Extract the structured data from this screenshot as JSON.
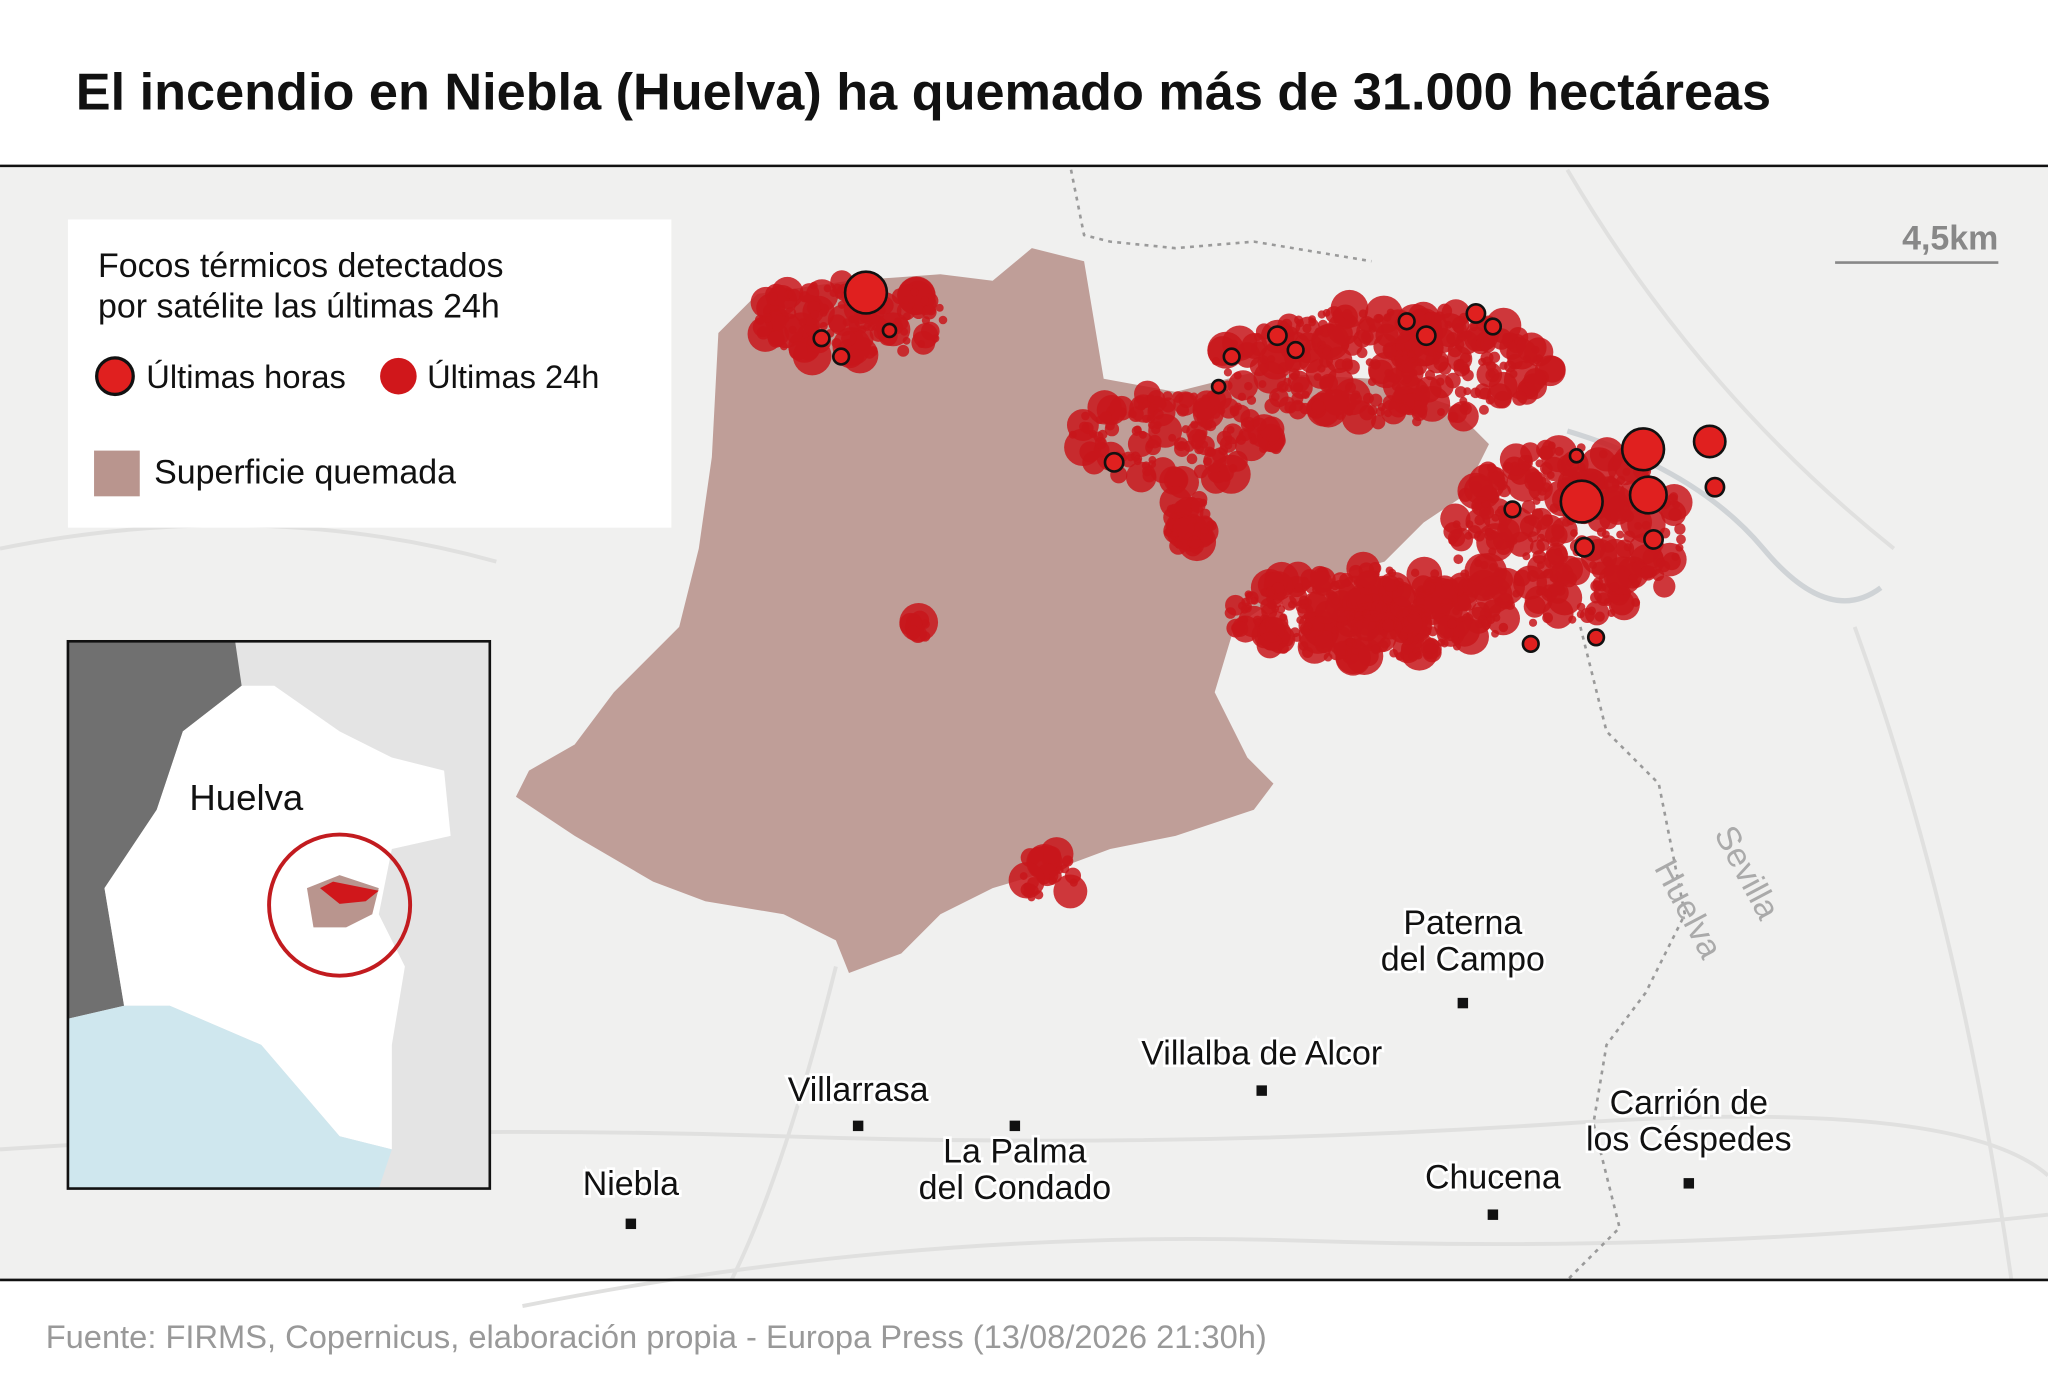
{
  "title": "El incendio en Niebla (Huelva) ha quemado más de 31.000 hectáreas",
  "legend": {
    "title_lines": [
      "Focos térmicos detectados",
      "por satélite las últimas 24h"
    ],
    "recent": "Últimas horas",
    "day": "Últimas 24h",
    "burned": "Superficie quemada"
  },
  "scale": "4,5km",
  "places": [
    {
      "lines": [
        "Paterna",
        "del Campo"
      ]
    },
    {
      "lines": [
        "Villalba de Alcor"
      ]
    },
    {
      "lines": [
        "Villarrasa"
      ]
    },
    {
      "lines": [
        "La Palma",
        "del Condado"
      ]
    },
    {
      "lines": [
        "Niebla"
      ]
    },
    {
      "lines": [
        "Chucena"
      ]
    },
    {
      "lines": [
        "Carrión de",
        "los Céspedes"
      ]
    }
  ],
  "roads": [
    "Sevilla",
    "Huelva"
  ],
  "inset": {
    "label": "Huelva"
  },
  "source": "Fuente: FIRMS, Copernicus, elaboración propia - Europa Press (13/08/2026 21:30h)"
}
